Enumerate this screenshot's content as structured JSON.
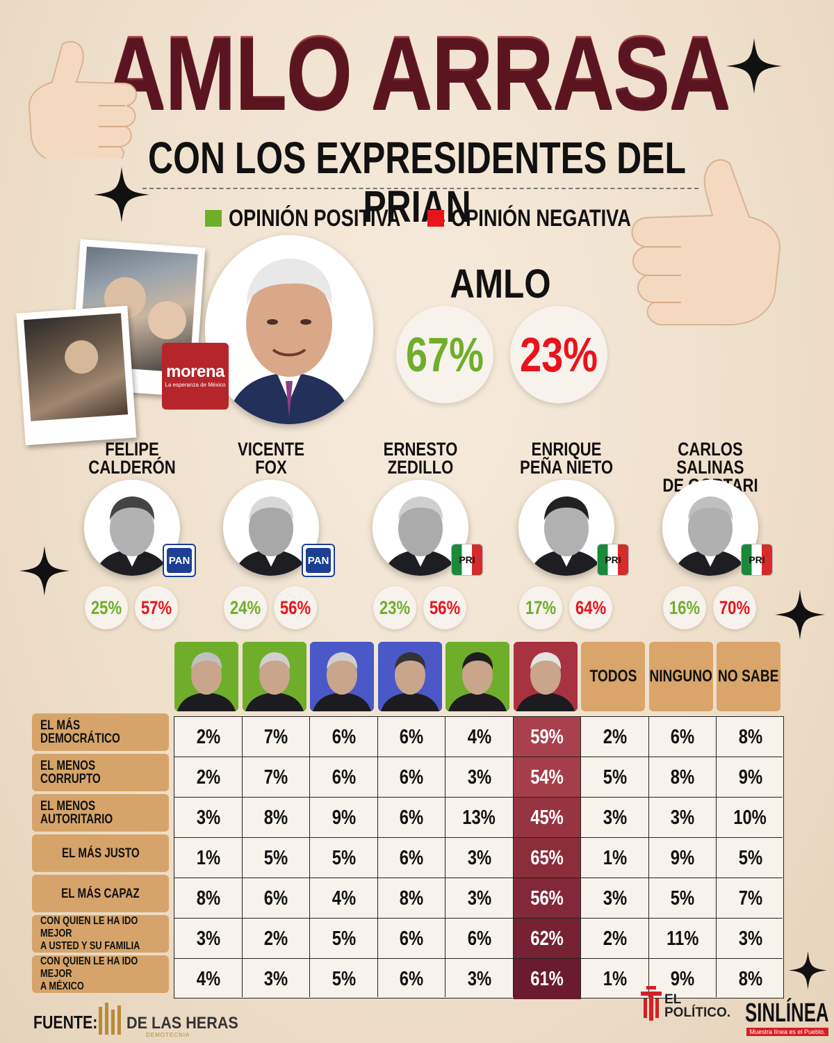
{
  "header": {
    "title": "AMLO ARRASA",
    "subtitle": "CON LOS EXPRESIDENTES DEL PRIAN"
  },
  "legend": {
    "positive_label": "OPINIÓN POSITIVA",
    "negative_label": "OPINIÓN NEGATIVA",
    "positive_color": "#6fae2b",
    "negative_color": "#e8141c"
  },
  "featured": {
    "name": "AMLO",
    "positive": "67%",
    "negative": "23%",
    "party_logo_text": "morena",
    "party_logo_tagline": "La esperanza de México"
  },
  "ex_presidents": [
    {
      "name_line1": "FELIPE",
      "name_line2": "CALDERÓN",
      "party": "PAN",
      "positive": "25%",
      "negative": "57%"
    },
    {
      "name_line1": "VICENTE",
      "name_line2": "FOX",
      "party": "PAN",
      "positive": "24%",
      "negative": "56%"
    },
    {
      "name_line1": "ERNESTO",
      "name_line2": "ZEDILLO",
      "party": "PRI",
      "positive": "23%",
      "negative": "56%"
    },
    {
      "name_line1": "ENRIQUE",
      "name_line2": "PEÑA NIETO",
      "party": "PRI",
      "positive": "17%",
      "negative": "64%"
    },
    {
      "name_line1": "CARLOS SALINAS",
      "name_line2": "DE GORTARI",
      "party": "PRI",
      "positive": "16%",
      "negative": "70%"
    }
  ],
  "chart_data": {
    "type": "table",
    "columns": [
      "TODOS",
      "NINGUNO",
      "NO SABE"
    ],
    "column_photo_colors": [
      "#6fae2b",
      "#6fae2b",
      "#4a58c8",
      "#4a58c8",
      "#6fae2b",
      "#a83240"
    ],
    "rows": [
      {
        "label": "EL MÁS DEMOCRÁTICO",
        "values": [
          "2%",
          "7%",
          "6%",
          "6%",
          "4%",
          "59%",
          "2%",
          "6%",
          "8%"
        ]
      },
      {
        "label": "EL MENOS CORRUPTO",
        "values": [
          "2%",
          "7%",
          "6%",
          "6%",
          "3%",
          "54%",
          "5%",
          "8%",
          "9%"
        ]
      },
      {
        "label": "EL MENOS AUTORITARIO",
        "values": [
          "3%",
          "8%",
          "9%",
          "6%",
          "13%",
          "45%",
          "3%",
          "3%",
          "10%"
        ]
      },
      {
        "label": "EL MÁS JUSTO",
        "values": [
          "1%",
          "5%",
          "5%",
          "6%",
          "3%",
          "65%",
          "1%",
          "9%",
          "5%"
        ]
      },
      {
        "label": "EL MÁS CAPAZ",
        "values": [
          "8%",
          "6%",
          "4%",
          "8%",
          "3%",
          "56%",
          "3%",
          "5%",
          "7%"
        ]
      },
      {
        "label_line1": "CON QUIEN LE HA IDO MEJOR",
        "label_line2": "A USTED Y SU FAMILIA",
        "values": [
          "3%",
          "2%",
          "5%",
          "6%",
          "6%",
          "62%",
          "2%",
          "11%",
          "3%"
        ]
      },
      {
        "label_line1": "CON QUIEN LE HA IDO MEJOR",
        "label_line2": "A MÉXICO",
        "values": [
          "4%",
          "3%",
          "5%",
          "6%",
          "3%",
          "61%",
          "1%",
          "9%",
          "8%"
        ]
      }
    ]
  },
  "footer": {
    "source_label": "FUENTE:",
    "source_name": "DE LAS HERAS",
    "source_sub": "DEMOTECNIA",
    "brand1": "EL POLÍTICO.",
    "brand2": "SINLÍNEA",
    "brand2_tagline": "Muestra línea es el Pueblo."
  }
}
